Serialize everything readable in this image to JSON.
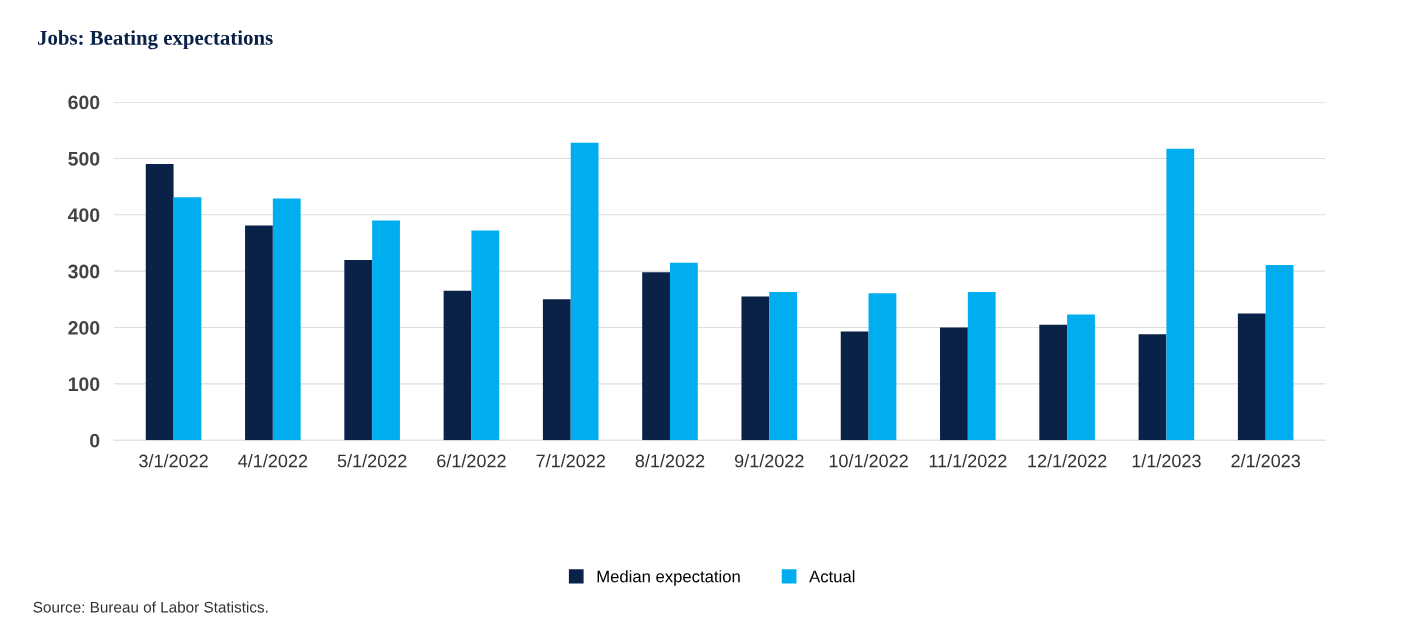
{
  "chart_data": {
    "type": "bar",
    "title": "Jobs: Beating expectations",
    "categories": [
      "3/1/2022",
      "4/1/2022",
      "5/1/2022",
      "6/1/2022",
      "7/1/2022",
      "8/1/2022",
      "9/1/2022",
      "10/1/2022",
      "11/1/2022",
      "12/1/2022",
      "1/1/2023",
      "2/1/2023"
    ],
    "series": [
      {
        "name": "Median expectation",
        "color": "#0a2148",
        "values": [
          490,
          381,
          320,
          265,
          250,
          298,
          255,
          193,
          200,
          205,
          188,
          225
        ]
      },
      {
        "name": "Actual",
        "color": "#00adef",
        "values": [
          431,
          429,
          390,
          372,
          528,
          315,
          263,
          261,
          263,
          223,
          517,
          311
        ]
      }
    ],
    "ylim": [
      0,
      600
    ],
    "yticks": [
      0,
      100,
      200,
      300,
      400,
      500,
      600
    ],
    "grid": "y",
    "legend": "bottom",
    "annotations": [
      "Source: Bureau of Labor Statistics."
    ]
  }
}
